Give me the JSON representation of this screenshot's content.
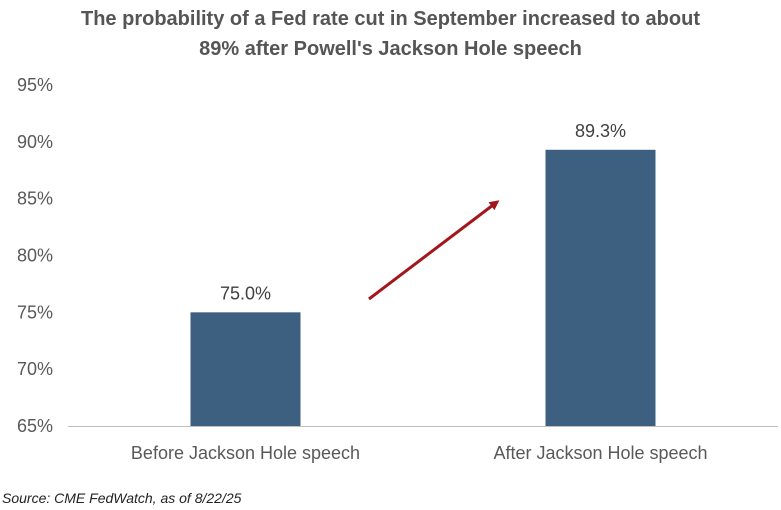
{
  "chart_data": {
    "type": "bar",
    "title_lines": [
      "The probability of a Fed rate cut in September increased to about",
      "89% after Powell's Jackson Hole speech"
    ],
    "categories": [
      "Before Jackson Hole speech",
      "After Jackson Hole speech"
    ],
    "values": [
      75.0,
      89.3
    ],
    "data_labels": [
      "75.0%",
      "89.3%"
    ],
    "ylim": [
      65,
      95
    ],
    "yticks": [
      65,
      70,
      75,
      80,
      85,
      90,
      95
    ],
    "ytick_labels": [
      "65%",
      "70%",
      "75%",
      "80%",
      "85%",
      "90%",
      "95%"
    ],
    "xlabel": "",
    "ylabel": "",
    "grid": false,
    "annotation": "arrow-up-right",
    "source": "Source: CME FedWatch, as of 8/22/25"
  },
  "colors": {
    "bar": "#3d5f80",
    "arrow": "#a3161c",
    "axis": "#bfbfbf",
    "title": "#555555"
  }
}
